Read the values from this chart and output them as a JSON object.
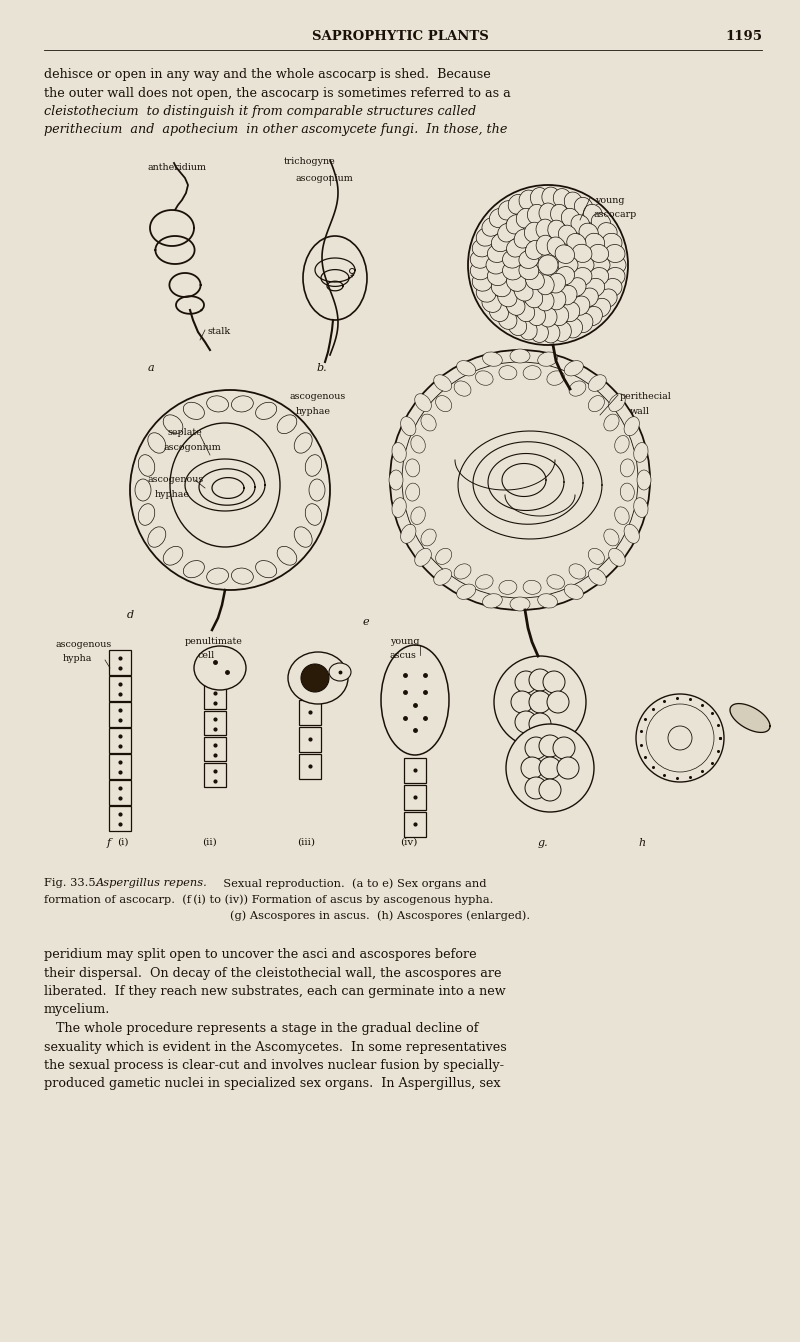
{
  "bg_color": "#e8e3d5",
  "text_color": "#1a1008",
  "page_width": 8.0,
  "page_height": 13.42,
  "dpi": 100,
  "header_title": "SAPROPHYTIC PLANTS",
  "header_page": "1195",
  "para2_lines": [
    "peridium may split open to uncover the asci and ascospores before",
    "their dispersal.  On decay of the cleistothecial wall, the ascospores are",
    "liberated.  If they reach new substrates, each can germinate into a new",
    "mycelium.",
    "   The whole procedure represents a stage in the gradual decline of",
    "sexuality which is evident in the Ascomycetes.  In some representatives",
    "the sexual process is clear-cut and involves nuclear fusion by specially-",
    "produced gametic nuclei in specialized sex organs.  In Aspergillus, sex"
  ]
}
